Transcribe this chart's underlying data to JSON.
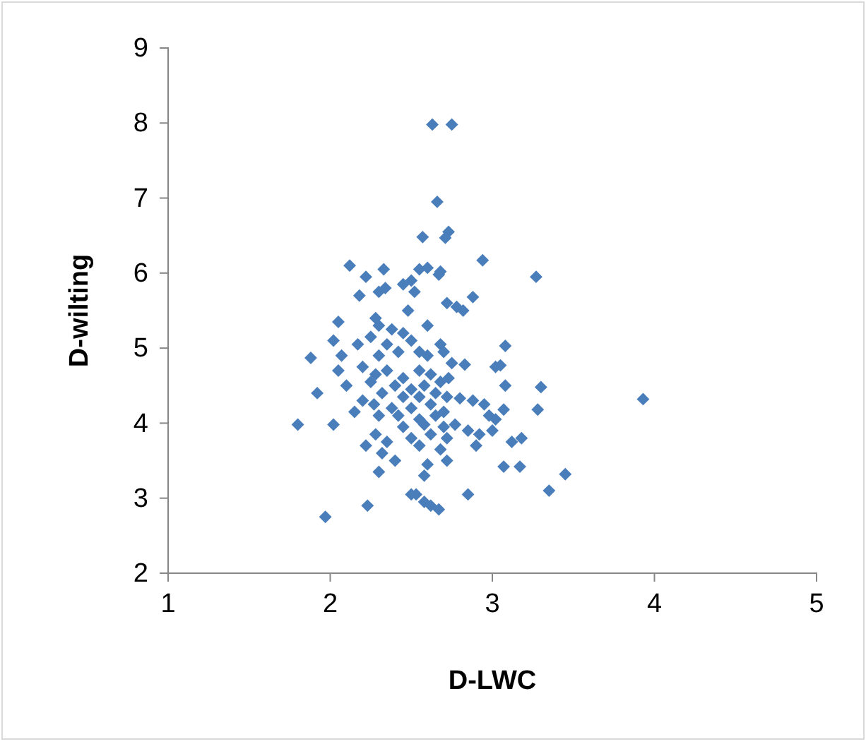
{
  "chart_data": {
    "type": "scatter",
    "xlabel": "D-LWC",
    "ylabel": "D-wilting",
    "xlim": [
      1,
      5
    ],
    "ylim": [
      2,
      9
    ],
    "xticks": [
      1,
      2,
      3,
      4,
      5
    ],
    "yticks": [
      2,
      3,
      4,
      5,
      6,
      7,
      8,
      9
    ],
    "grid": false,
    "marker": "diamond",
    "series": [
      {
        "color": "#4a7ebb",
        "x": [
          2.63,
          2.75,
          2.66,
          2.57,
          2.73,
          2.71,
          2.94,
          3.27,
          2.12,
          2.33,
          2.55,
          2.6,
          2.67,
          2.68,
          2.22,
          2.3,
          2.34,
          2.45,
          2.5,
          2.18,
          2.52,
          2.72,
          2.78,
          2.88,
          2.82,
          2.48,
          2.05,
          2.28,
          2.3,
          2.38,
          2.45,
          2.6,
          2.02,
          2.25,
          2.35,
          2.5,
          2.68,
          3.08,
          2.17,
          2.07,
          1.88,
          2.3,
          2.42,
          2.55,
          2.6,
          2.7,
          2.75,
          2.83,
          3.02,
          3.05,
          2.05,
          2.2,
          2.28,
          2.35,
          2.45,
          2.55,
          2.62,
          2.68,
          2.73,
          2.25,
          2.4,
          2.5,
          2.58,
          2.65,
          3.08,
          3.3,
          2.1,
          1.92,
          2.32,
          2.45,
          2.55,
          2.72,
          2.8,
          2.88,
          2.95,
          3.93,
          2.2,
          2.27,
          2.38,
          2.5,
          2.62,
          2.7,
          3.07,
          3.28,
          2.15,
          2.3,
          2.42,
          2.55,
          2.65,
          2.98,
          3.02,
          1.8,
          2.02,
          2.45,
          2.58,
          2.7,
          2.77,
          2.85,
          2.92,
          3.0,
          3.12,
          3.18,
          2.28,
          2.35,
          2.5,
          2.62,
          2.72,
          2.22,
          2.32,
          2.55,
          2.68,
          2.9,
          3.07,
          3.17,
          2.4,
          2.6,
          2.72,
          2.3,
          2.58,
          3.45,
          3.35,
          2.53,
          2.23,
          2.58,
          2.62,
          2.67,
          2.85,
          1.97,
          2.5
        ],
        "values": [
          7.98,
          7.98,
          6.95,
          6.48,
          6.55,
          6.47,
          6.17,
          5.95,
          6.1,
          6.05,
          6.05,
          6.07,
          5.98,
          6.02,
          5.95,
          5.75,
          5.8,
          5.85,
          5.9,
          5.7,
          5.75,
          5.6,
          5.55,
          5.68,
          5.5,
          5.5,
          5.35,
          5.4,
          5.3,
          5.25,
          5.2,
          5.3,
          5.1,
          5.15,
          5.05,
          5.1,
          5.05,
          5.03,
          5.05,
          4.9,
          4.87,
          4.9,
          4.95,
          4.95,
          4.9,
          4.95,
          4.8,
          4.78,
          4.75,
          4.77,
          4.7,
          4.75,
          4.65,
          4.7,
          4.6,
          4.7,
          4.65,
          4.55,
          4.6,
          4.55,
          4.5,
          4.45,
          4.5,
          4.4,
          4.5,
          4.48,
          4.5,
          4.4,
          4.4,
          4.35,
          4.35,
          4.35,
          4.33,
          4.3,
          4.25,
          4.32,
          4.3,
          4.25,
          4.2,
          4.2,
          4.25,
          4.15,
          4.18,
          4.18,
          4.15,
          4.1,
          4.1,
          4.05,
          4.1,
          4.1,
          4.05,
          3.98,
          3.98,
          3.95,
          3.98,
          3.95,
          3.98,
          3.9,
          3.85,
          3.9,
          3.75,
          3.8,
          3.85,
          3.75,
          3.8,
          3.85,
          3.8,
          3.7,
          3.6,
          3.7,
          3.65,
          3.7,
          3.42,
          3.42,
          3.5,
          3.45,
          3.5,
          3.35,
          3.3,
          3.32,
          3.1,
          3.05,
          2.9,
          2.95,
          2.9,
          2.85,
          3.05,
          2.75,
          3.05
        ]
      }
    ]
  }
}
